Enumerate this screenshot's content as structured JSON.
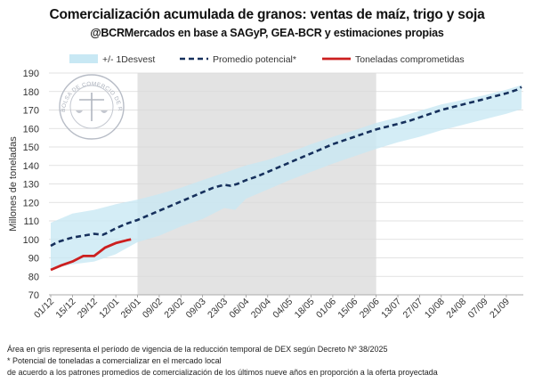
{
  "header": {
    "title": "Comercialización acumulada de granos: ventas de maíz, trigo y soja",
    "subtitle": "@BCRMercados en base a SAGyP, GEA-BCR y estimaciones propias"
  },
  "logo": {
    "text": "BOLSA DE COMERCIO DE ROSARIO"
  },
  "chart_data": {
    "type": "line",
    "title": "Comercialización acumulada de granos: ventas de maíz, trigo y soja",
    "ylabel": "Millones de toneladas",
    "xlabel": "",
    "ylim": [
      70,
      190
    ],
    "yticks": [
      70,
      80,
      90,
      100,
      110,
      120,
      130,
      140,
      150,
      160,
      170,
      180,
      190
    ],
    "grid": true,
    "legend_position": "top",
    "x_ticks": [
      "01/12",
      "15/12",
      "29/12",
      "12/01",
      "26/01",
      "09/02",
      "23/02",
      "09/03",
      "23/03",
      "06/04",
      "20/04",
      "04/05",
      "18/05",
      "01/06",
      "15/06",
      "29/06",
      "13/07",
      "27/07",
      "10/08",
      "24/08",
      "07/09",
      "21/09"
    ],
    "x_range": [
      0,
      21.7
    ],
    "shaded_region": {
      "from": 4,
      "to": 15,
      "color": "#e3e3e3"
    },
    "legend": [
      {
        "key": "band",
        "label": "+/- 1Desvest"
      },
      {
        "key": "potential",
        "label": "Promedio potencial*"
      },
      {
        "key": "committed",
        "label": "Toneladas comprometidas"
      }
    ],
    "colors": {
      "band": "#c8e8f4",
      "potential": "#16305c",
      "committed": "#cc1f1f"
    },
    "series": [
      {
        "name": "Promedio potencial*",
        "style": "dashed",
        "x": [
          0,
          0.3,
          0.7,
          1,
          1.5,
          2,
          2.4,
          2.6,
          3,
          3.5,
          4,
          4.5,
          5,
          5.5,
          6,
          6.5,
          7,
          7.5,
          8,
          8.3,
          8.6,
          9,
          9.5,
          10,
          10.5,
          11,
          11.5,
          12,
          12.5,
          13,
          13.5,
          14,
          14.5,
          15,
          15.5,
          16,
          16.5,
          17,
          17.5,
          18,
          18.5,
          19,
          19.5,
          20,
          20.5,
          21,
          21.5,
          21.7
        ],
        "y": [
          96.5,
          98.5,
          100,
          101,
          102,
          103,
          102.5,
          103.5,
          106,
          108.5,
          110.5,
          113,
          115.5,
          118,
          120.5,
          123,
          125.5,
          128,
          129.5,
          129,
          130,
          132,
          134,
          136.5,
          139,
          141.5,
          144,
          146.5,
          149,
          151.5,
          153.5,
          155.5,
          157.5,
          159.5,
          161,
          162.5,
          164,
          166,
          168,
          170,
          171.5,
          173,
          174.5,
          176,
          177.5,
          179,
          181,
          182.5
        ]
      },
      {
        "name": "Toneladas comprometidas",
        "style": "solid",
        "x": [
          0,
          0.5,
          1,
          1.5,
          2,
          2.5,
          3,
          3.5,
          3.7
        ],
        "y": [
          83.5,
          86,
          88,
          91,
          91,
          95.5,
          98,
          99.5,
          100
        ]
      },
      {
        "name": "+/- 1Desvest",
        "style": "band",
        "x": [
          0,
          1,
          2,
          3,
          4,
          5,
          6,
          7,
          8,
          8.5,
          9,
          10,
          11,
          12,
          13,
          14,
          15,
          16,
          17,
          18,
          19,
          20,
          21,
          21.7
        ],
        "upper": [
          109,
          114,
          116,
          119,
          121.5,
          124.5,
          128,
          132,
          136,
          138,
          140,
          143,
          147,
          151.5,
          155.5,
          159,
          163,
          166,
          169.5,
          173,
          175.5,
          178,
          181,
          183.5
        ],
        "lower": [
          84,
          86.5,
          88,
          92,
          98.5,
          102,
          107,
          111,
          117,
          116,
          122,
          127,
          132,
          136.5,
          141,
          145,
          149,
          152.5,
          155.5,
          159,
          162,
          165,
          168,
          170.5
        ]
      }
    ]
  },
  "notes": [
    "Área en gris representa el período de vigencia de la reducción temporal de DEX según Decreto Nº 38/2025",
    "* Potencial de toneladas a comercializar en el mercado local",
    "de acuerdo a los patrones promedios de comercialización de los últimos nueve años en proporción a la oferta proyectada"
  ]
}
